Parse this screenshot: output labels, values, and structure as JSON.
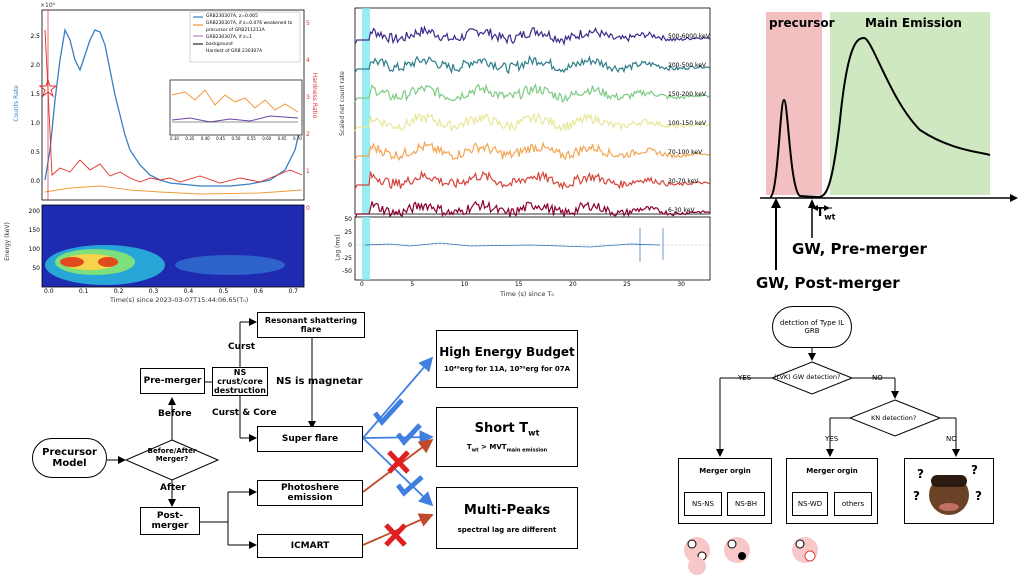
{
  "panel_lightcurve": {
    "legend": [
      "GRB230307A, z=0.065",
      "GRB230307A, if z=0.076 weakened to precursor of GRB211211A",
      "GRB230307A, if z=1",
      "background",
      "Hardest of GRB 230307A"
    ],
    "ylabel_left": "Counts Rate",
    "ylabel_right": "Hardness Ratio",
    "exp_left": "×10⁴",
    "yticks_left": [
      "2.5",
      "2.0",
      "1.5",
      "1.0",
      "0.5",
      "0.0"
    ],
    "yticks_right": [
      "5",
      "4",
      "3",
      "2",
      "1",
      "0"
    ],
    "inset_xticks": [
      "0.30",
      "0.35",
      "0.40",
      "0.45",
      "0.50",
      "0.55",
      "0.60",
      "0.65",
      "0.70"
    ],
    "spec_ylabel": "Energy (keV)",
    "spec_yticks": [
      "200",
      "150",
      "100",
      "50"
    ],
    "xticks": [
      "0.0",
      "0.1",
      "0.2",
      "0.3",
      "0.4",
      "0.5",
      "0.6",
      "0.7"
    ],
    "xlabel": "Time(s) since 2023-03-07T15:44:06.65(T₀)"
  },
  "panel_multiband": {
    "ylabel": "Scaled net count rate",
    "bands": [
      "500-6000 keV",
      "200-500 keV",
      "150-200 keV",
      "100-150 keV",
      "70-100 keV",
      "30-70 keV",
      "6-30 keV"
    ],
    "band_colors": [
      "#3d2a8a",
      "#2e7d8a",
      "#7ecb86",
      "#e8e79a",
      "#f2a654",
      "#d4453a",
      "#8a0030"
    ],
    "lag_ylabel": "Lag (ms)",
    "lag_yticks": [
      "50",
      "25",
      "0",
      "-25",
      "-50"
    ],
    "xticks": [
      "0",
      "5",
      "10",
      "15",
      "20",
      "25",
      "30"
    ],
    "xlabel": "Time (s) since T₀"
  },
  "schematic": {
    "precursor": "precursor",
    "main_emission": "Main Emission",
    "twt": "T",
    "twt_sub": "wt",
    "gw_pre": "GW, Pre-merger",
    "gw_post": "GW, Post-merger"
  },
  "flowchart": {
    "precursor_model": "Precursor Model",
    "before_after": "Before/After Merger?",
    "before": "Before",
    "after": "After",
    "pre_merger": "Pre-merger",
    "post_merger": "Post-merger",
    "ns_crust": "NS crust/core destruction",
    "curst": "Curst",
    "curst_core": "Curst & Core",
    "resonant": "Resonant shattering flare",
    "ns_magnetar": "NS is magnetar",
    "super_flare": "Super flare",
    "photosphere": "Photoshere emission",
    "icmart": "ICMART",
    "high_energy": "High Energy Budget",
    "high_energy_sub": "10⁴⁹erg for 11A, 10⁵⁰erg for 07A",
    "short_twt": "Short T",
    "short_twt_sub": "wt",
    "short_twt_note": "T",
    "short_twt_note_rest": " > MVT",
    "short_twt_note_wt": "wt",
    "short_twt_note_sub": "main emission",
    "multi_peaks": "Multi-Peaks",
    "multi_peaks_sub": "spectral lag are different"
  },
  "decision": {
    "detection": "detction of Type IL GRB",
    "lvk": "(LVK) GW detection?",
    "yes": "YES",
    "no": "NO",
    "kn": "KN detection?",
    "merger_origin": "Merger orgin",
    "ns_ns": "NS-NS",
    "ns_bh": "NS-BH",
    "ns_wd": "NS-WD",
    "others": "others",
    "question": "?"
  }
}
